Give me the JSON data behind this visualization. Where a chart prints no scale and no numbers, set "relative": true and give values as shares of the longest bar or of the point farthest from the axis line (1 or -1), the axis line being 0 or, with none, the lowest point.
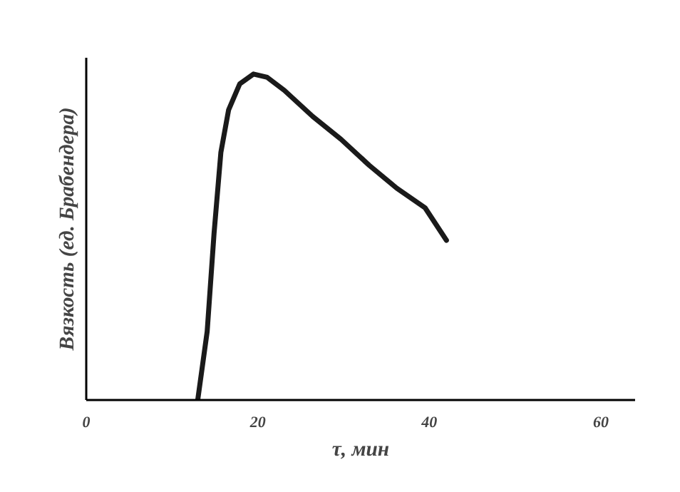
{
  "chart_data": {
    "type": "line",
    "relative": true,
    "xlabel": "τ, мин",
    "ylabel": "Вязкость (ед. Брабендера)",
    "xlim": [
      0,
      64
    ],
    "xticks": [
      0,
      20,
      40,
      60
    ],
    "grid": false,
    "line_style": "solid",
    "series": [
      {
        "color": "#1a1a1a",
        "x": [
          13,
          14.1,
          14.9,
          15.7,
          16.6,
          17.9,
          19.5,
          21.1,
          23.1,
          26.4,
          29.7,
          33.0,
          36.2,
          39.5,
          42.0
        ],
        "values": [
          0,
          0.21,
          0.51,
          0.76,
          0.89,
          0.97,
          1.0,
          0.99,
          0.95,
          0.87,
          0.8,
          0.72,
          0.65,
          0.59,
          0.49
        ]
      }
    ]
  }
}
